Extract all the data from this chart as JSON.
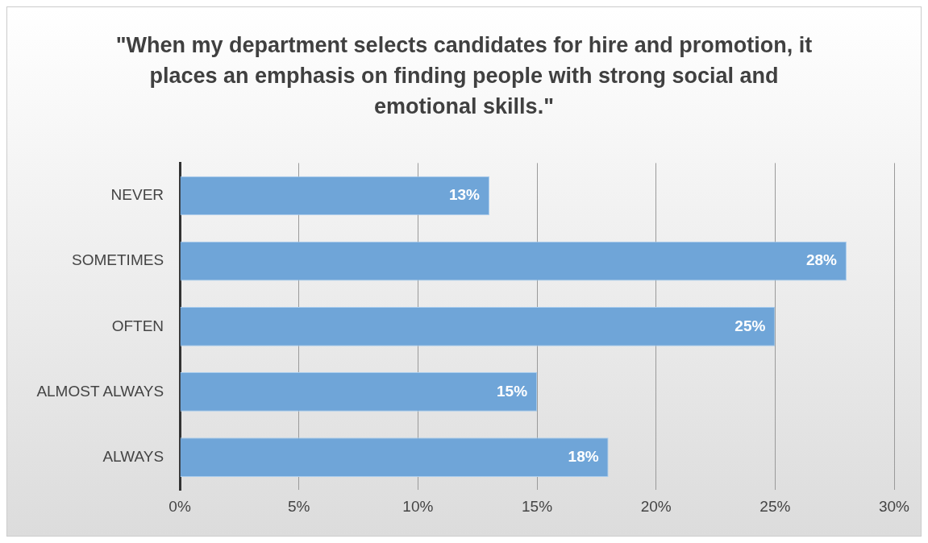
{
  "chart_data": {
    "type": "bar",
    "orientation": "horizontal",
    "title": "\"When my department selects candidates for hire and promotion, it places an emphasis on finding people with strong social and emotional skills.\"",
    "categories": [
      "NEVER",
      "SOMETIMES",
      "OFTEN",
      "ALMOST ALWAYS",
      "ALWAYS"
    ],
    "values": [
      13,
      28,
      25,
      15,
      18
    ],
    "value_labels": [
      "13%",
      "28%",
      "25%",
      "15%",
      "18%"
    ],
    "color": "#6fa5d8",
    "xlim": [
      0,
      30
    ],
    "xticks": [
      {
        "value": 0,
        "label": "0%"
      },
      {
        "value": 5,
        "label": "5%"
      },
      {
        "value": 10,
        "label": "10%"
      },
      {
        "value": 15,
        "label": "15%"
      },
      {
        "value": 20,
        "label": "20%"
      },
      {
        "value": 25,
        "label": "25%"
      },
      {
        "value": 30,
        "label": "30%"
      }
    ],
    "grid": "x"
  }
}
